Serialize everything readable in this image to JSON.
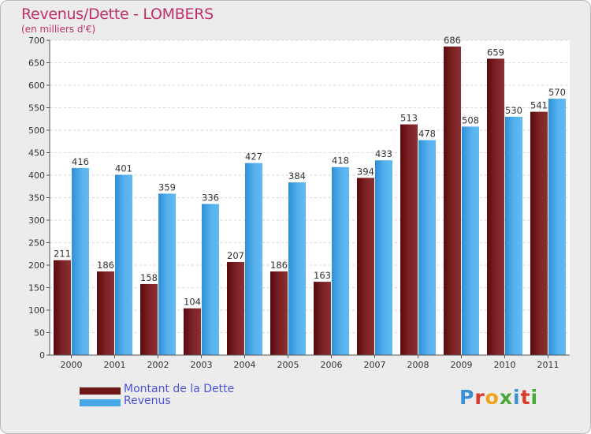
{
  "chart": {
    "title": "Revenus/Dette - LOMBERS",
    "subtitle": "(en milliers d'€)"
  },
  "legend": {
    "debt_label": "Montant de la Dette",
    "revenue_label": "Revenus"
  },
  "logo": {
    "letters": [
      "P",
      "r",
      "o",
      "x",
      "i",
      "t",
      "i"
    ],
    "colors": [
      "#3d8fd6",
      "#d93a2a",
      "#f2a21b",
      "#4aa83b",
      "#3d8fd6",
      "#d93a2a",
      "#4aa83b"
    ]
  },
  "colors": {
    "debt": "#6e1518",
    "revenue": "#46a6e6"
  },
  "chart_data": {
    "type": "bar",
    "title": "Revenus/Dette - LOMBERS",
    "subtitle": "(en milliers d'€)",
    "categories": [
      "2000",
      "2001",
      "2002",
      "2003",
      "2004",
      "2005",
      "2006",
      "2007",
      "2008",
      "2009",
      "2010",
      "2011"
    ],
    "series": [
      {
        "name": "Montant de la Dette",
        "values": [
          211,
          186,
          158,
          104,
          207,
          186,
          163,
          394,
          513,
          686,
          659,
          541
        ]
      },
      {
        "name": "Revenus",
        "values": [
          416,
          401,
          359,
          336,
          427,
          384,
          418,
          433,
          478,
          508,
          530,
          570
        ]
      }
    ],
    "ylim": [
      0,
      700
    ],
    "yticks": [
      0,
      50,
      100,
      150,
      200,
      250,
      300,
      350,
      400,
      450,
      500,
      550,
      600,
      650,
      700
    ],
    "grid": true,
    "legend_position": "bottom-left"
  }
}
